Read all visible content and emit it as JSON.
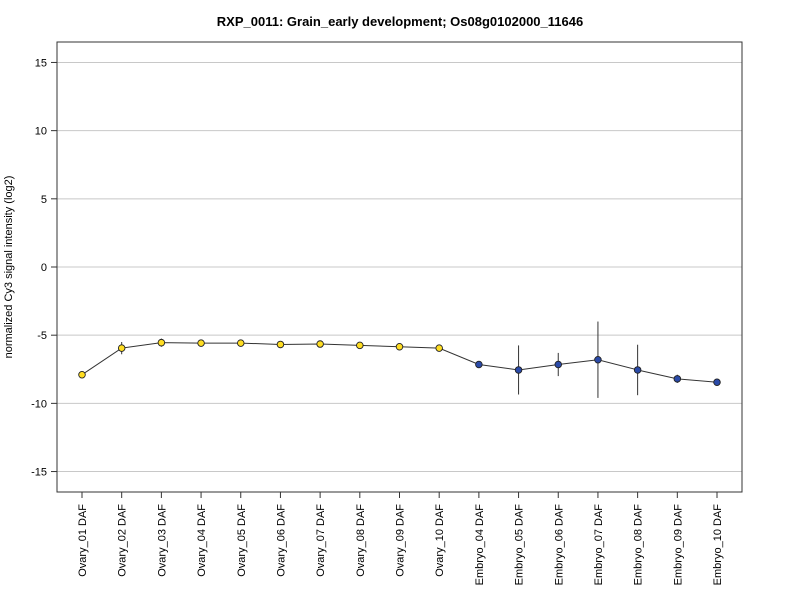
{
  "chart_data": {
    "type": "line",
    "title": "RXP_0011: Grain_early development; Os08g0102000_11646",
    "xlabel": "",
    "ylabel": "normalized Cy3 signal intensity (log2)",
    "ylim": [
      -16.5,
      16.5
    ],
    "yticks": [
      -15,
      -10,
      -5,
      0,
      5,
      10,
      15
    ],
    "grid": true,
    "categories": [
      "Ovary_01 DAF",
      "Ovary_02 DAF",
      "Ovary_03 DAF",
      "Ovary_04 DAF",
      "Ovary_05 DAF",
      "Ovary_06 DAF",
      "Ovary_07 DAF",
      "Ovary_08 DAF",
      "Ovary_09 DAF",
      "Ovary_10 DAF",
      "Embryo_04 DAF",
      "Embryo_05 DAF",
      "Embryo_06 DAF",
      "Embryo_07 DAF",
      "Embryo_08 DAF",
      "Embryo_09 DAF",
      "Embryo_10 DAF"
    ],
    "values": [
      -7.9,
      -5.95,
      -5.55,
      -5.58,
      -5.58,
      -5.68,
      -5.65,
      -5.75,
      -5.85,
      -5.95,
      -7.15,
      -7.55,
      -7.15,
      -6.8,
      -7.55,
      -8.2,
      -8.45
    ],
    "errors": [
      0.15,
      0.45,
      0.3,
      0.15,
      0.15,
      0.25,
      0.25,
      0.2,
      0.15,
      0.15,
      0.2,
      1.8,
      0.85,
      2.8,
      1.85,
      0.3,
      0.25
    ],
    "point_colors": [
      "#ffdd22",
      "#ffdd22",
      "#ffdd22",
      "#ffdd22",
      "#ffdd22",
      "#ffdd22",
      "#ffdd22",
      "#ffdd22",
      "#ffdd22",
      "#ffdd22",
      "#2a4aa8",
      "#2a4aa8",
      "#2a4aa8",
      "#2a4aa8",
      "#2a4aa8",
      "#2a4aa8",
      "#2a4aa8"
    ],
    "line_color": "#333333",
    "grid_color": "#c8c8c8"
  }
}
